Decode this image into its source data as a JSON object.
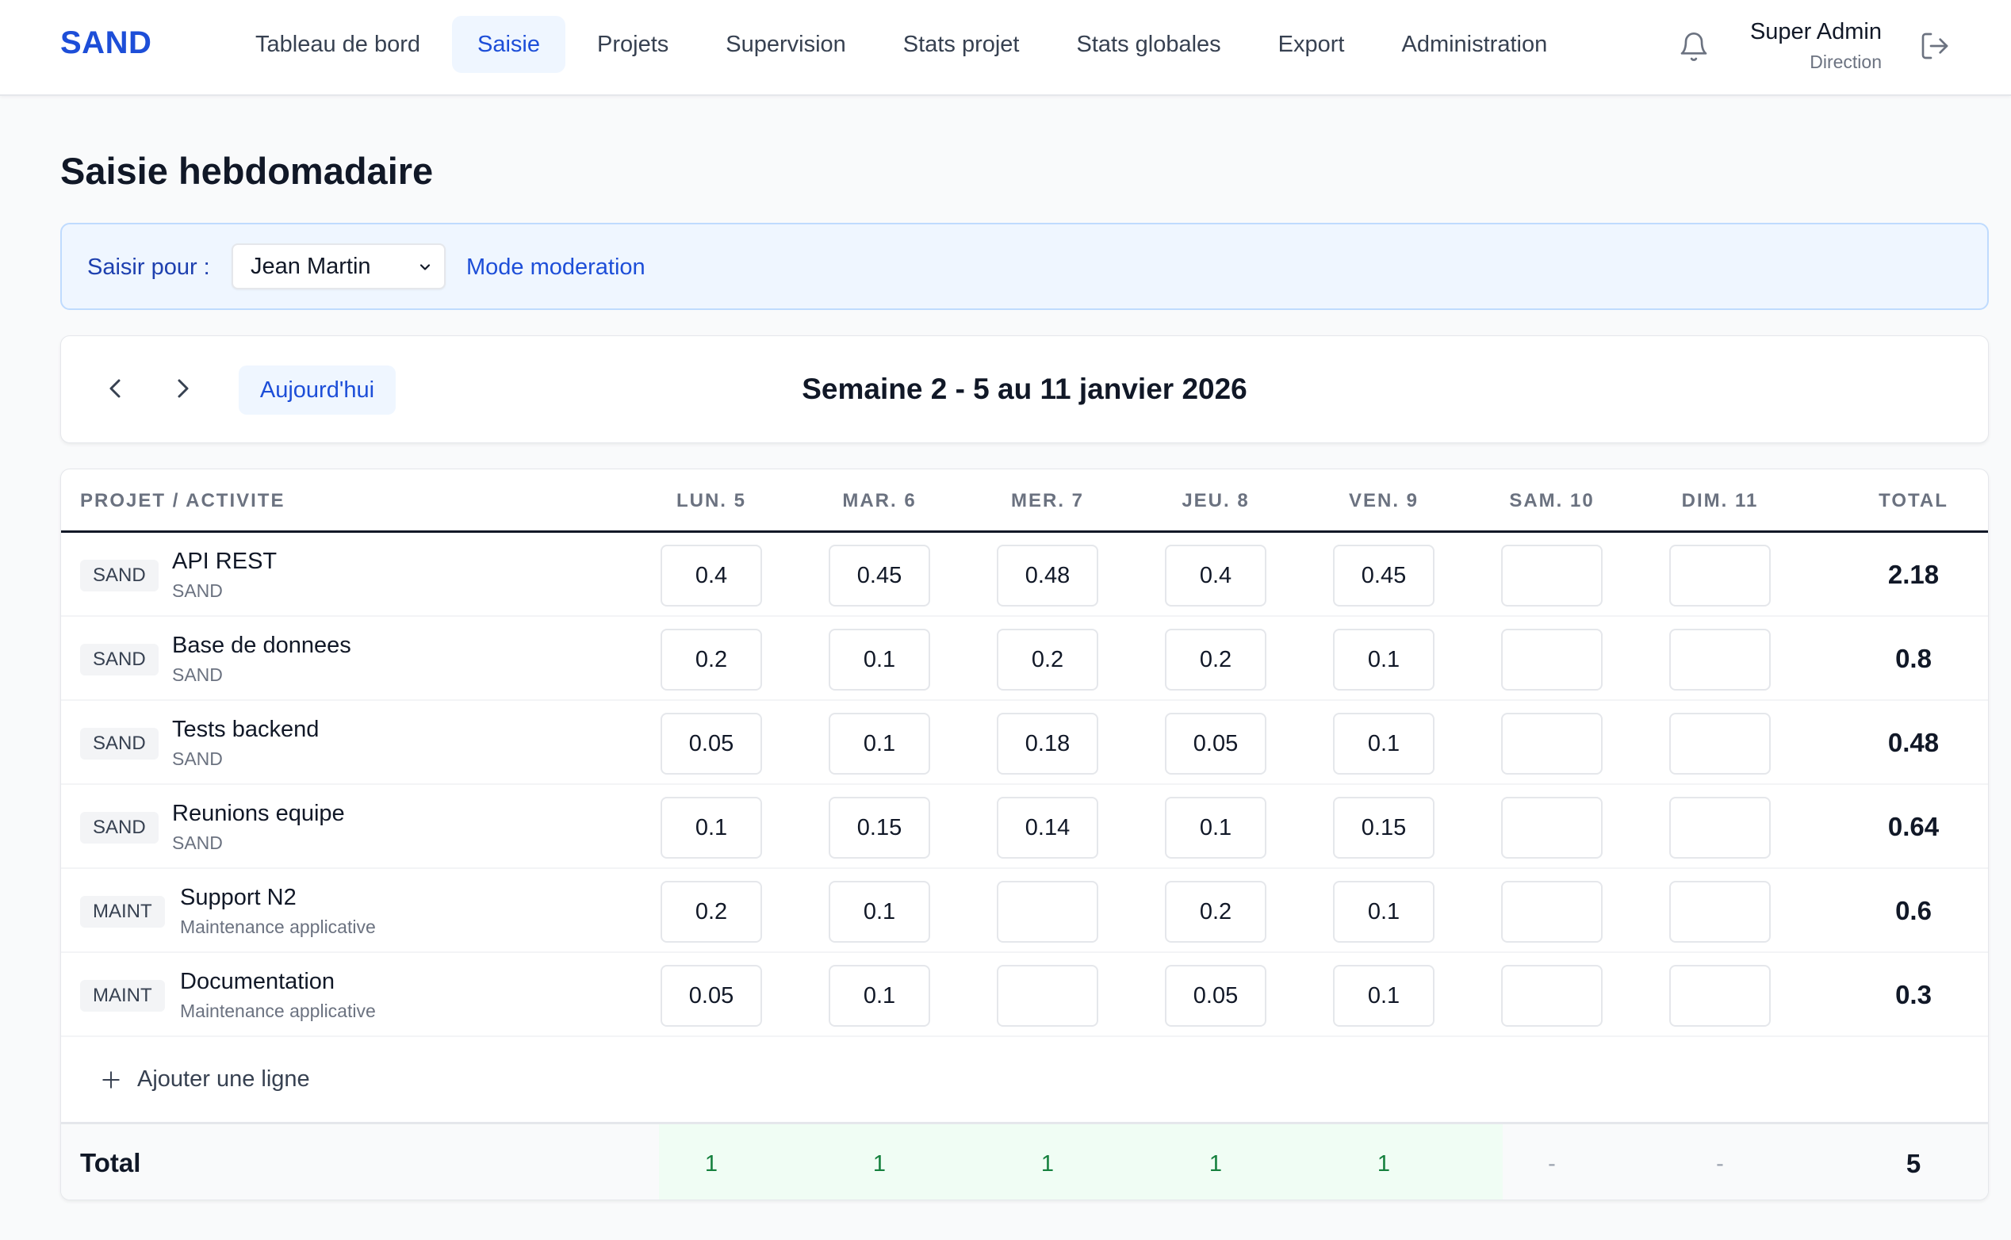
{
  "nav": {
    "brand": "SAND",
    "links": [
      "Tableau de bord",
      "Saisie",
      "Projets",
      "Supervision",
      "Stats projet",
      "Stats globales",
      "Export",
      "Administration"
    ],
    "active_index": 1,
    "user_name": "Super Admin",
    "user_role": "Direction"
  },
  "page_title": "Saisie hebdomadaire",
  "moderation": {
    "label": "Saisir pour :",
    "selected_user": "Jean Martin",
    "mode_link": "Mode moderation"
  },
  "week": {
    "today_label": "Aujourd'hui",
    "title": "Semaine 2 - 5 au 11 janvier 2026"
  },
  "table": {
    "headers": [
      "PROJET / ACTIVITE",
      "LUN. 5",
      "MAR. 6",
      "MER. 7",
      "JEU. 8",
      "VEN. 9",
      "SAM. 10",
      "DIM. 11",
      "TOTAL"
    ],
    "rows": [
      {
        "badge": "SAND",
        "name": "API REST",
        "project": "SAND",
        "values": [
          "0.4",
          "0.45",
          "0.48",
          "0.4",
          "0.45",
          "",
          ""
        ],
        "total": "2.18"
      },
      {
        "badge": "SAND",
        "name": "Base de donnees",
        "project": "SAND",
        "values": [
          "0.2",
          "0.1",
          "0.2",
          "0.2",
          "0.1",
          "",
          ""
        ],
        "total": "0.8"
      },
      {
        "badge": "SAND",
        "name": "Tests backend",
        "project": "SAND",
        "values": [
          "0.05",
          "0.1",
          "0.18",
          "0.05",
          "0.1",
          "",
          ""
        ],
        "total": "0.48"
      },
      {
        "badge": "SAND",
        "name": "Reunions equipe",
        "project": "SAND",
        "values": [
          "0.1",
          "0.15",
          "0.14",
          "0.1",
          "0.15",
          "",
          ""
        ],
        "total": "0.64"
      },
      {
        "badge": "MAINT",
        "name": "Support N2",
        "project": "Maintenance applicative",
        "values": [
          "0.2",
          "0.1",
          "",
          "0.2",
          "0.1",
          "",
          ""
        ],
        "total": "0.6"
      },
      {
        "badge": "MAINT",
        "name": "Documentation",
        "project": "Maintenance applicative",
        "values": [
          "0.05",
          "0.1",
          "",
          "0.05",
          "0.1",
          "",
          ""
        ],
        "total": "0.3"
      }
    ],
    "add_line_label": "Ajouter une ligne",
    "footer": {
      "label": "Total",
      "day_totals": [
        "1",
        "1",
        "1",
        "1",
        "1",
        "-",
        "-"
      ],
      "grand_total": "5"
    }
  },
  "colors": {
    "accent": "#1d4ed8",
    "accent_bg": "#eff6ff",
    "ok_text": "#15803d",
    "ok_bg": "#f0fdf4"
  },
  "icons": [
    "bell-icon",
    "logout-icon",
    "chevron-left-icon",
    "chevron-right-icon",
    "chevron-down-icon",
    "plus-icon"
  ]
}
